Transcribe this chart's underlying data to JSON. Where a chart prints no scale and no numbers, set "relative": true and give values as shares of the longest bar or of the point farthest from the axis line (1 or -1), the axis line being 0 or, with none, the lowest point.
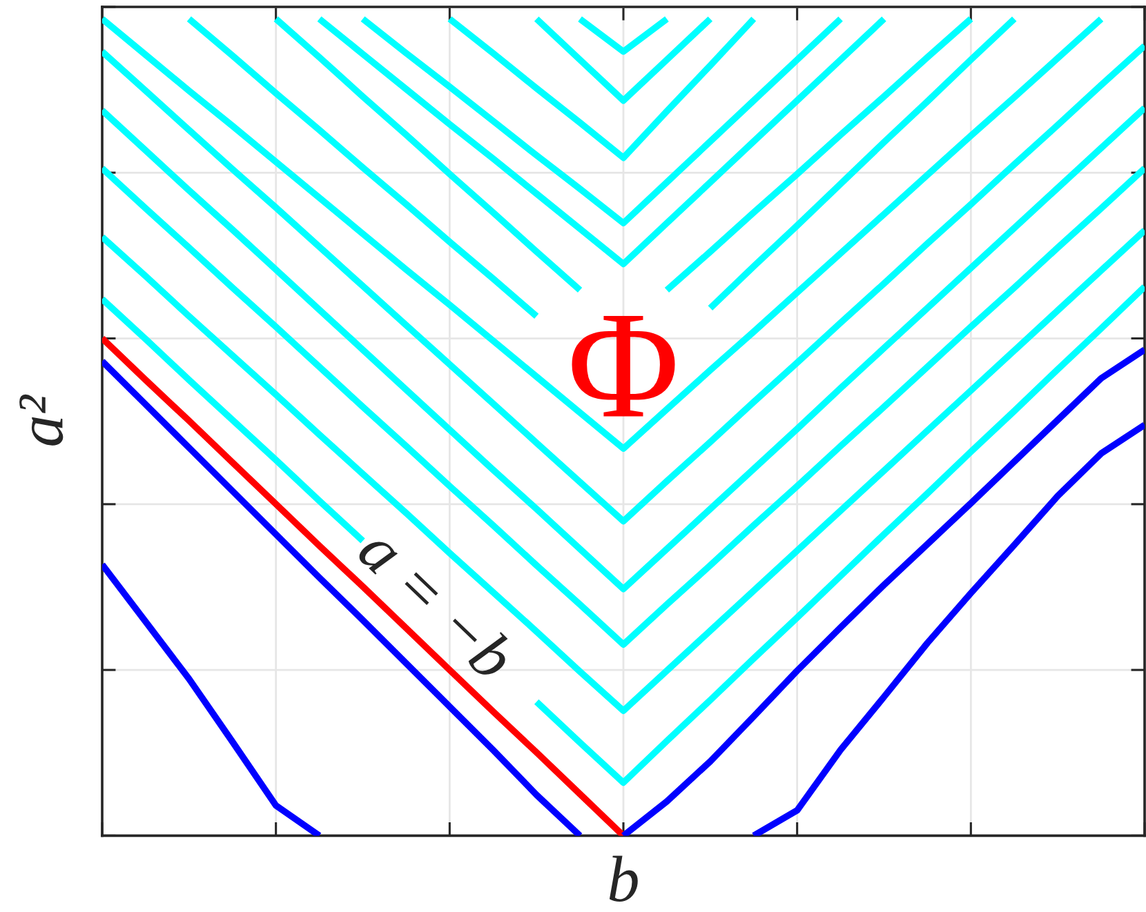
{
  "chart_data": {
    "type": "line",
    "xlabel": "b",
    "ylabel": "a²",
    "annotations": [
      "Φ"
    ],
    "categories": [
      null,
      null,
      null,
      null,
      null,
      null,
      null,
      null,
      null,
      null,
      null,
      null,
      null,
      null,
      null,
      null,
      null,
      null,
      null,
      null,
      null,
      null,
      null,
      null,
      null
    ],
    "relative": true,
    "grid": true,
    "series": [
      {
        "color": "#00ffff",
        "values": [
          null,
          null,
          null,
          null,
          null,
          null,
          null,
          null,
          null,
          null,
          null,
          1.0,
          0.96,
          1.0,
          null,
          null,
          null,
          null,
          null,
          null,
          null,
          null,
          null,
          null,
          null
        ]
      },
      {
        "color": "#00ffff",
        "values": [
          null,
          null,
          null,
          null,
          null,
          null,
          null,
          null,
          null,
          null,
          1.0,
          0.95,
          0.9,
          0.95,
          1.0,
          null,
          null,
          null,
          null,
          null,
          null,
          null,
          null,
          null,
          null
        ]
      },
      {
        "color": "#00ffff",
        "values": [
          null,
          null,
          null,
          null,
          null,
          null,
          null,
          null,
          1.0,
          0.958,
          0.915,
          0.873,
          0.83,
          0.887,
          0.943,
          1.0,
          null,
          null,
          null,
          null,
          null,
          null,
          null,
          null,
          null
        ]
      },
      {
        "color": "#00ffff",
        "values": [
          null,
          null,
          null,
          null,
          null,
          null,
          1.0,
          0.958,
          0.917,
          0.875,
          0.833,
          0.792,
          0.75,
          0.8,
          0.85,
          0.9,
          0.95,
          1.0,
          null,
          null,
          null,
          null,
          null,
          null,
          null
        ]
      },
      {
        "color": "#00ffff",
        "values": [
          null,
          null,
          null,
          null,
          null,
          1.0,
          0.957,
          0.914,
          0.871,
          0.829,
          0.786,
          0.743,
          0.7,
          0.75,
          0.8,
          0.85,
          0.9,
          0.95,
          1.0,
          null,
          null,
          null,
          null,
          null,
          null
        ]
      },
      {
        "color": "#00ffff",
        "values": [
          null,
          null,
          null,
          null,
          1.0,
          0.953,
          0.905,
          0.858,
          0.81,
          0.763,
          0.715,
          0.668,
          null,
          0.668,
          0.715,
          0.763,
          0.81,
          0.858,
          0.905,
          0.953,
          1.0,
          null,
          null,
          null,
          null
        ]
      },
      {
        "color": "#00ffff",
        "values": [
          null,
          null,
          1.0,
          0.955,
          0.909,
          0.864,
          0.818,
          0.773,
          0.727,
          0.682,
          0.636,
          null,
          null,
          null,
          0.646,
          0.697,
          0.747,
          0.798,
          0.849,
          0.899,
          0.95,
          1.0,
          null,
          null,
          null
        ]
      },
      {
        "color": "#00ffff",
        "values": [
          1.0,
          0.956,
          0.912,
          0.869,
          0.825,
          0.781,
          0.737,
          0.693,
          0.65,
          0.606,
          0.562,
          0.518,
          0.474,
          0.522,
          0.57,
          0.617,
          0.665,
          0.713,
          0.761,
          0.809,
          0.857,
          0.904,
          0.952,
          1.0,
          null
        ]
      },
      {
        "color": "#00ffff",
        "values": [
          0.96,
          0.912,
          0.864,
          0.816,
          0.769,
          0.721,
          0.673,
          0.625,
          0.577,
          0.529,
          0.481,
          0.433,
          0.385,
          0.434,
          0.482,
          0.531,
          0.579,
          0.628,
          0.676,
          0.725,
          0.773,
          0.822,
          0.87,
          0.919,
          0.967
        ]
      },
      {
        "color": "#00ffff",
        "values": [
          0.888,
          0.839,
          0.79,
          0.742,
          0.693,
          0.644,
          0.595,
          0.546,
          0.497,
          0.448,
          0.4,
          0.351,
          0.302,
          0.351,
          0.4,
          0.449,
          0.498,
          0.548,
          0.597,
          0.646,
          0.695,
          0.744,
          0.793,
          0.842,
          0.891
        ]
      },
      {
        "color": "#00ffff",
        "values": [
          0.817,
          0.768,
          0.72,
          0.671,
          0.623,
          0.574,
          0.525,
          0.477,
          0.428,
          0.38,
          0.331,
          0.283,
          0.234,
          0.283,
          0.331,
          0.38,
          0.428,
          0.477,
          0.525,
          0.574,
          0.623,
          0.671,
          0.72,
          0.768,
          0.817
        ]
      },
      {
        "color": "#00ffff",
        "values": [
          0.733,
          0.685,
          0.636,
          0.588,
          0.54,
          0.491,
          0.443,
          0.395,
          0.346,
          0.298,
          0.25,
          0.201,
          0.153,
          0.202,
          0.251,
          0.3,
          0.349,
          0.398,
          0.447,
          0.496,
          0.545,
          0.594,
          0.643,
          0.692,
          0.741
        ]
      },
      {
        "color": "#00ffff",
        "values": [
          0.657,
          0.608,
          0.558,
          0.509,
          0.46,
          0.41,
          0.361,
          null,
          null,
          null,
          0.164,
          0.114,
          0.065,
          0.116,
          0.166,
          0.217,
          0.267,
          0.318,
          0.369,
          0.419,
          0.47,
          0.52,
          0.571,
          0.621,
          0.672
        ]
      },
      {
        "name": "a = −b",
        "color": "#ff0000",
        "values": [
          0.609,
          0.558,
          0.508,
          0.457,
          0.406,
          0.355,
          0.305,
          0.254,
          0.203,
          0.152,
          0.102,
          0.051,
          0.0,
          null,
          null,
          null,
          null,
          null,
          null,
          null,
          null,
          null,
          null,
          null,
          null
        ]
      },
      {
        "color": "#0000ff",
        "values": [
          0.332,
          0.262,
          0.192,
          0.115,
          0.037,
          0.0,
          null,
          null,
          null,
          null,
          null,
          null,
          null,
          null,
          null,
          null,
          null,
          null,
          null,
          null,
          null,
          null,
          null,
          null,
          null
        ]
      },
      {
        "color": "#0000ff",
        "values": [
          0.581,
          0.528,
          0.475,
          0.422,
          0.369,
          0.316,
          0.264,
          0.211,
          0.158,
          0.105,
          0.05,
          0.0,
          null,
          null,
          null,
          null,
          null,
          null,
          null,
          null,
          null,
          null,
          null,
          null,
          null
        ]
      },
      {
        "color": "#0000ff",
        "values": [
          null,
          null,
          null,
          null,
          null,
          null,
          null,
          null,
          null,
          null,
          null,
          null,
          0.0,
          0.042,
          0.091,
          0.146,
          0.202,
          0.255,
          0.307,
          0.357,
          0.407,
          0.458,
          0.509,
          0.56,
          0.595
        ]
      },
      {
        "color": "#0000ff",
        "values": [
          null,
          null,
          null,
          null,
          null,
          null,
          null,
          null,
          null,
          null,
          null,
          null,
          null,
          null,
          null,
          0.0,
          0.031,
          0.105,
          0.17,
          0.236,
          0.297,
          0.356,
          0.416,
          0.468,
          0.503
        ]
      }
    ]
  }
}
